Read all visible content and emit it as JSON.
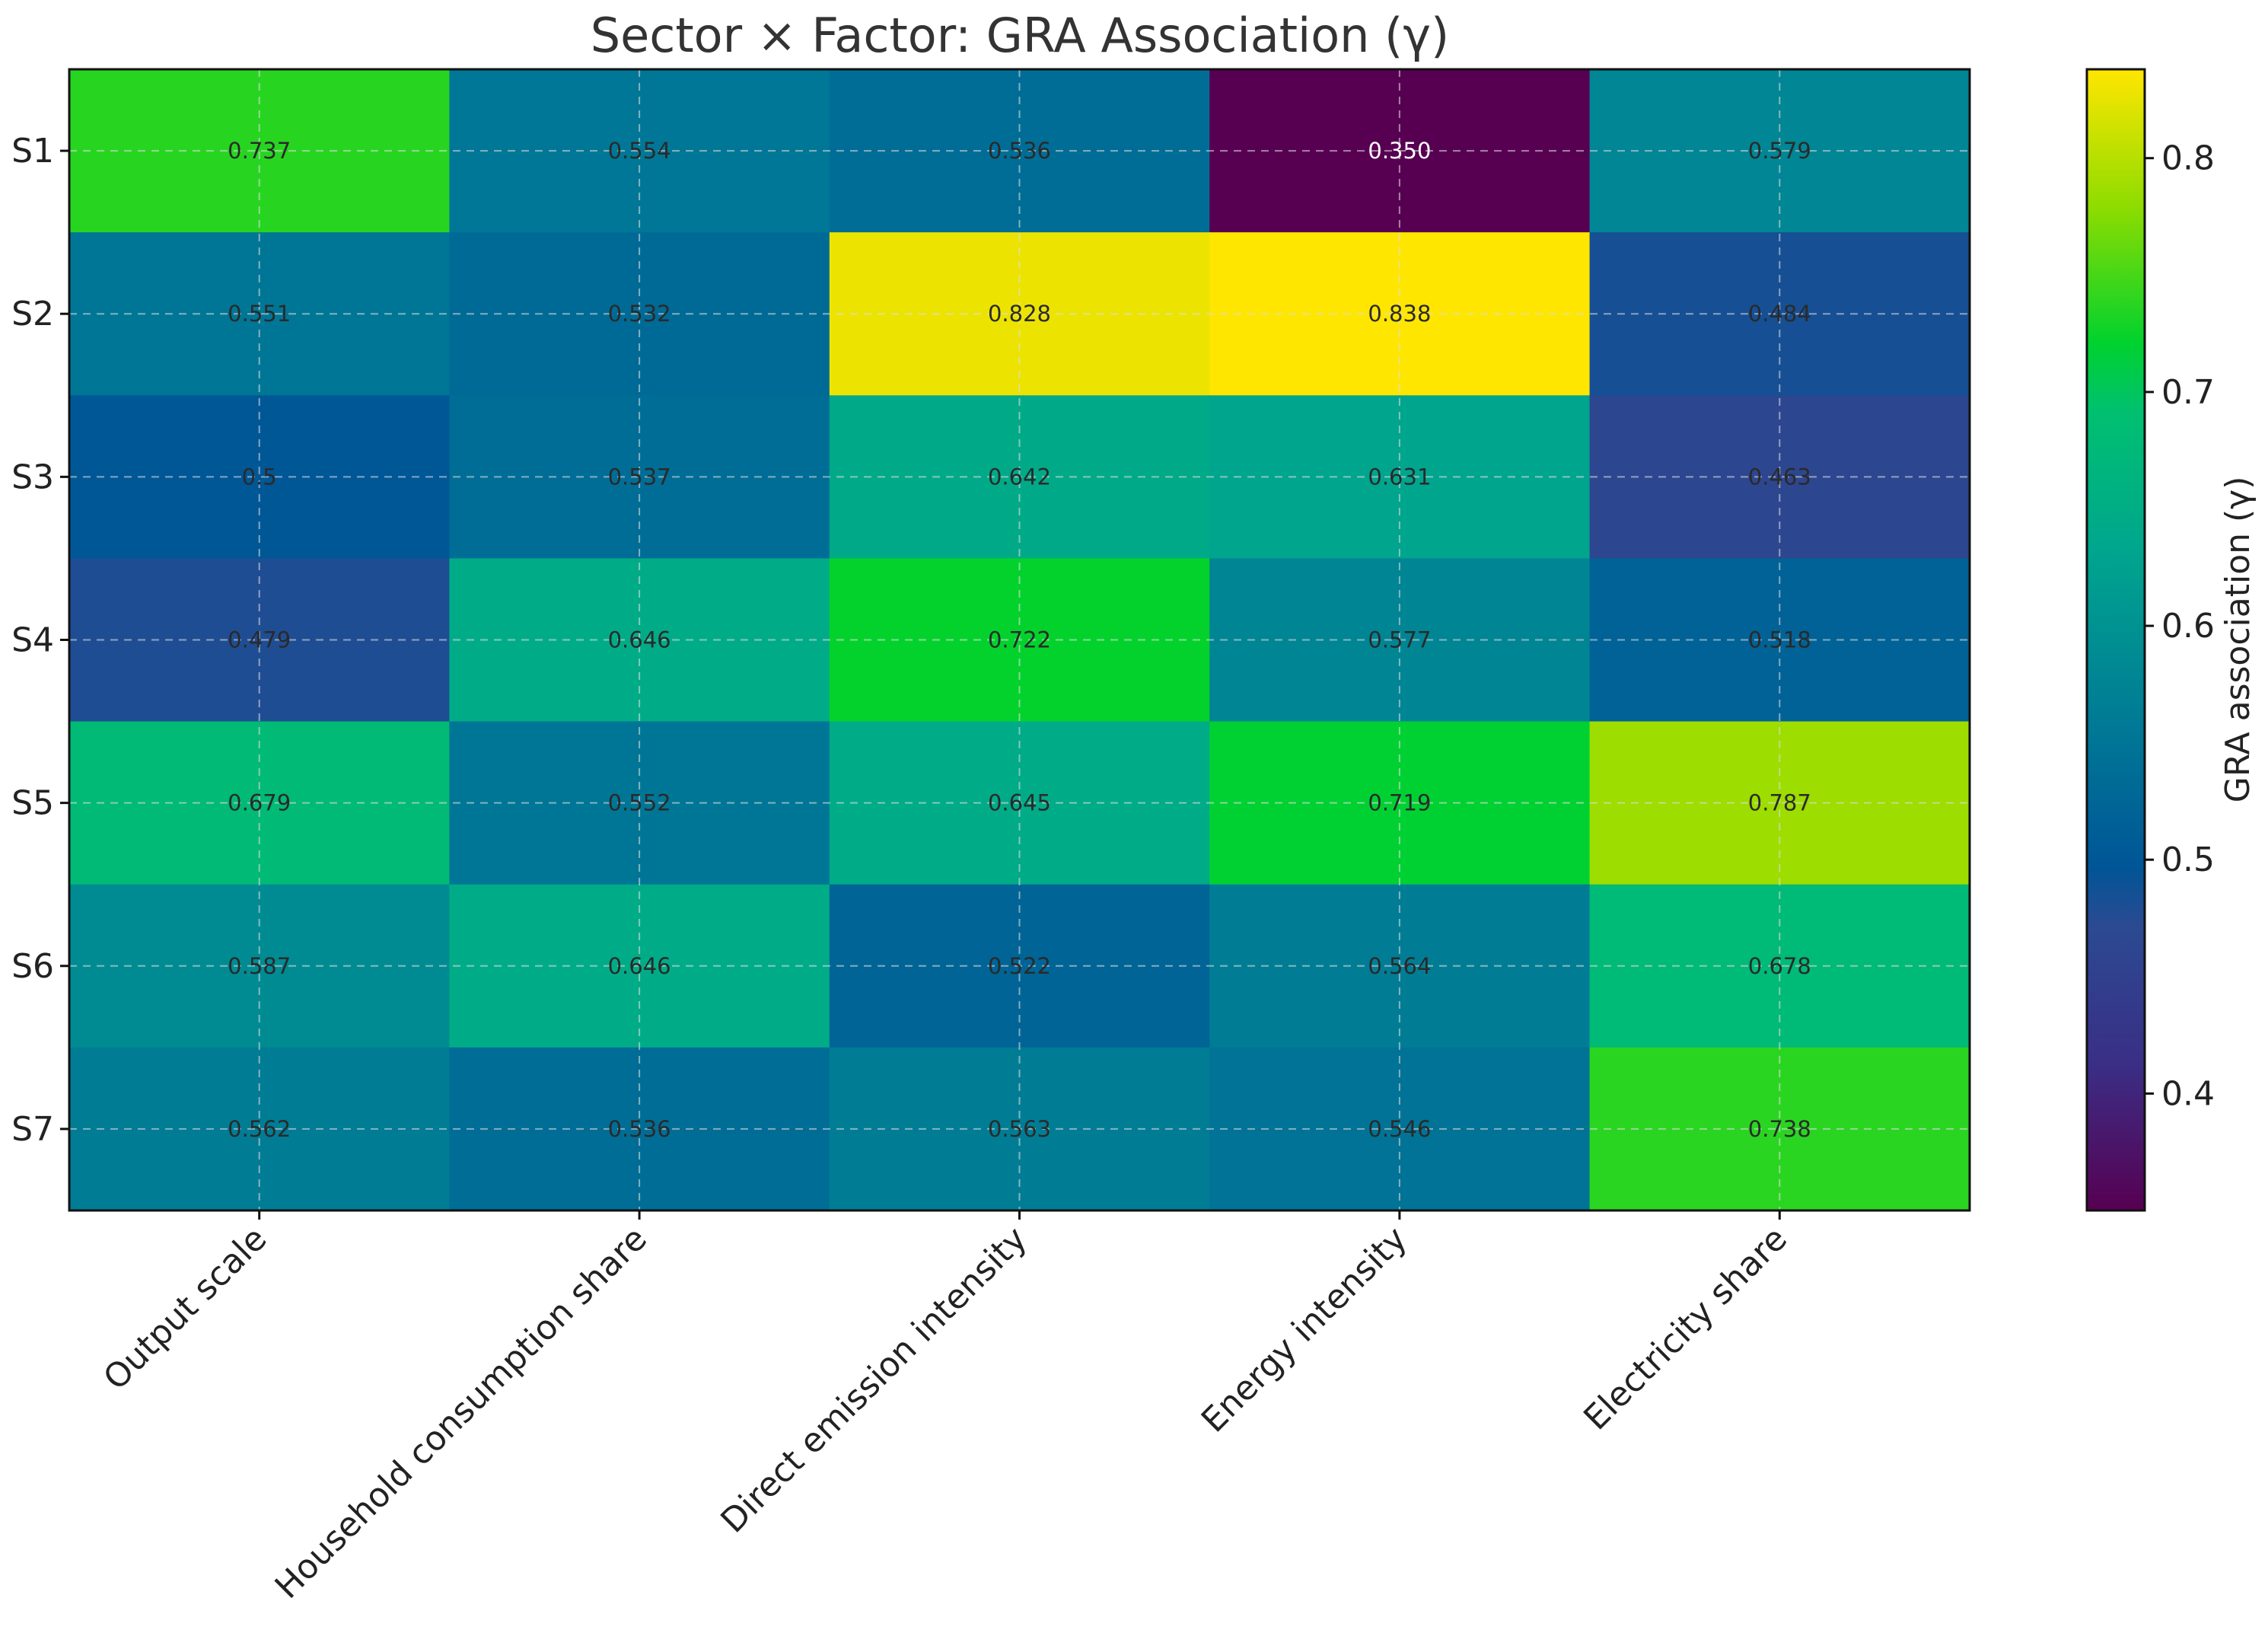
{
  "chart_data": {
    "type": "heatmap",
    "title": "Sector × Factor: GRA Association (γ)",
    "xlabel": "",
    "ylabel": "",
    "colorbar_label": "GRA association (γ)",
    "colormap": "viridis",
    "colorbar_range": [
      0.35,
      0.838
    ],
    "colorbar_ticks": [
      "0.4",
      "0.5",
      "0.6",
      "0.7",
      "0.8"
    ],
    "grid": true,
    "rows": [
      "S1",
      "S2",
      "S3",
      "S4",
      "S5",
      "S6",
      "S7"
    ],
    "columns": [
      "Output scale",
      "Household consumption share",
      "Direct emission intensity",
      "Energy intensity",
      "Electricity share"
    ],
    "values": [
      [
        0.737,
        0.554,
        0.536,
        0.35,
        0.579
      ],
      [
        0.551,
        0.532,
        0.828,
        0.838,
        0.484
      ],
      [
        0.5,
        0.537,
        0.642,
        0.631,
        0.463
      ],
      [
        0.479,
        0.646,
        0.722,
        0.577,
        0.518
      ],
      [
        0.679,
        0.552,
        0.645,
        0.719,
        0.787
      ],
      [
        0.587,
        0.646,
        0.522,
        0.564,
        0.678
      ],
      [
        0.562,
        0.536,
        0.563,
        0.546,
        0.738
      ]
    ],
    "value_labels": [
      [
        "0.737",
        "0.554",
        "0.536",
        "0.350",
        "0.579"
      ],
      [
        "0.551",
        "0.532",
        "0.828",
        "0.838",
        "0.484"
      ],
      [
        "0.5",
        "0.537",
        "0.642",
        "0.631",
        "0.463"
      ],
      [
        "0.479",
        "0.646",
        "0.722",
        "0.577",
        "0.518"
      ],
      [
        "0.679",
        "0.552",
        "0.645",
        "0.719",
        "0.787"
      ],
      [
        "0.587",
        "0.646",
        "0.522",
        "0.564",
        "0.678"
      ],
      [
        "0.562",
        "0.536",
        "0.563",
        "0.546",
        "0.738"
      ]
    ]
  }
}
